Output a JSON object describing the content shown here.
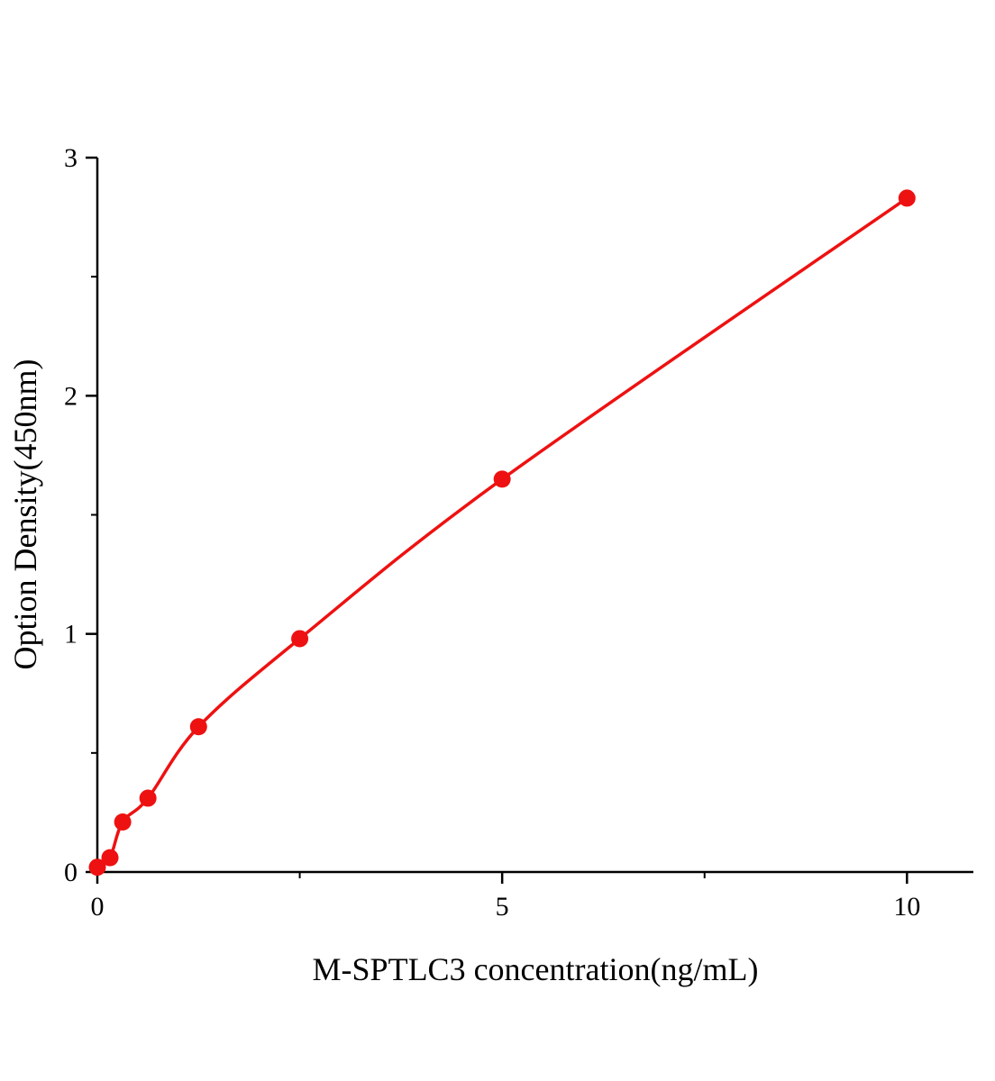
{
  "chart_data": {
    "type": "line",
    "title": "",
    "xlabel": "M-SPTLC3 concentration(ng/mL)",
    "ylabel": "Option Density(450nm)",
    "x": [
      0,
      0.156,
      0.313,
      0.625,
      1.25,
      2.5,
      5,
      10
    ],
    "y": [
      0.02,
      0.06,
      0.21,
      0.31,
      0.61,
      0.98,
      1.65,
      2.83
    ],
    "xlim": [
      0,
      10.82
    ],
    "ylim": [
      0,
      3
    ],
    "x_ticks": [
      0,
      5,
      10
    ],
    "y_ticks": [
      0,
      1,
      2,
      3
    ],
    "x_minor_ticks": [
      2.5,
      7.5
    ],
    "y_minor_ticks": [
      0.5,
      1.5,
      2.5
    ],
    "line_color": "#ee1111",
    "marker_color": "#ee1111",
    "axis_color": "#000000",
    "grid": false,
    "legend": null
  }
}
